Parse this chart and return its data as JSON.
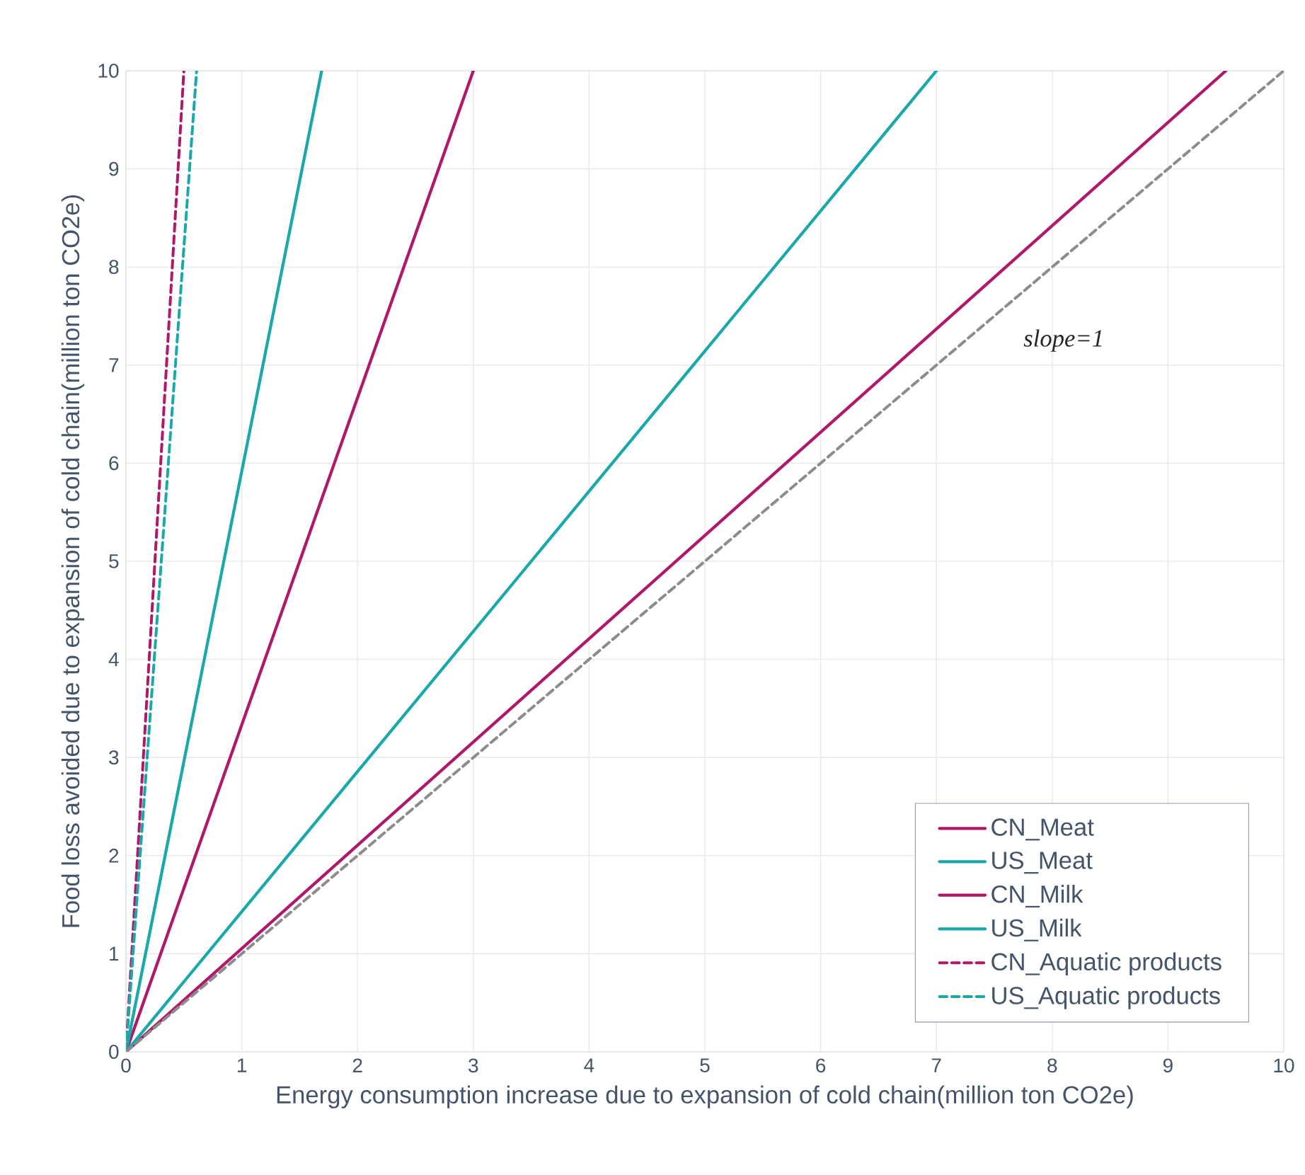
{
  "chart_data": {
    "type": "line",
    "xlabel": "Energy consumption increase due to expansion of cold chain(million ton CO2e)",
    "ylabel": "Food loss avoided due to expansion of cold chain(million ton CO2e)",
    "xlim": [
      0,
      10
    ],
    "ylim": [
      0,
      10
    ],
    "xticks": [
      0,
      1,
      2,
      3,
      4,
      5,
      6,
      7,
      8,
      9,
      10
    ],
    "yticks": [
      0,
      1,
      2,
      3,
      4,
      5,
      6,
      7,
      8,
      9,
      10
    ],
    "grid": true,
    "legend": "bottom right",
    "marker": "none",
    "series": [
      {
        "name": "CN_Meat",
        "color": "#b0186a",
        "line_style": "solid",
        "x": [
          0,
          3.0
        ],
        "values": [
          0,
          10
        ]
      },
      {
        "name": "US_Meat",
        "color": "#1aa8aa",
        "line_style": "solid",
        "x": [
          0,
          1.69
        ],
        "values": [
          0,
          10
        ]
      },
      {
        "name": "CN_Milk",
        "color": "#b0186a",
        "line_style": "solid",
        "x": [
          0,
          9.5
        ],
        "values": [
          0,
          10
        ]
      },
      {
        "name": "US_Milk",
        "color": "#1aa8aa",
        "line_style": "solid",
        "x": [
          0,
          7.0
        ],
        "values": [
          0,
          10
        ]
      },
      {
        "name": "CN_Aquatic products",
        "color": "#b0186a",
        "line_style": "dashed",
        "x": [
          0,
          0.5
        ],
        "values": [
          0,
          10
        ]
      },
      {
        "name": "US_Aquatic products",
        "color": "#1aa8aa",
        "line_style": "dashed",
        "x": [
          0,
          0.61
        ],
        "values": [
          0,
          10
        ]
      },
      {
        "color": "#8c8c8c",
        "line_style": "dashed",
        "x": [
          0,
          10
        ],
        "values": [
          0,
          10
        ]
      }
    ],
    "annotations": [
      "slope=1"
    ]
  }
}
